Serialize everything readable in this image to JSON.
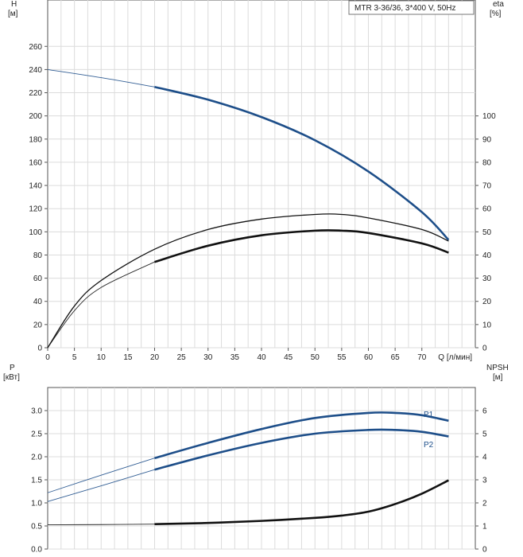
{
  "chart_data": [
    {
      "type": "line",
      "panel": "top",
      "title": "MTR 3-36/36, 3*400 V, 50Hz",
      "xlabel": "Q [л/мин]",
      "ylabel_left": [
        "H",
        "[м]"
      ],
      "ylabel_right": [
        "eta",
        "[%]"
      ],
      "x_ticks": [
        "0",
        "5",
        "10",
        "15",
        "20",
        "25",
        "30",
        "35",
        "40",
        "45",
        "50",
        "55",
        "60",
        "65",
        "70"
      ],
      "x_tick_values": [
        0,
        5,
        10,
        15,
        20,
        25,
        30,
        35,
        40,
        45,
        50,
        55,
        60,
        65,
        70
      ],
      "xlim": [
        0,
        80
      ],
      "ylim_left": [
        0,
        300
      ],
      "y_ticks_left": [
        "0",
        "20",
        "40",
        "60",
        "80",
        "100",
        "120",
        "140",
        "160",
        "180",
        "200",
        "220",
        "240",
        "260"
      ],
      "y_tick_values_left": [
        0,
        20,
        40,
        60,
        80,
        100,
        120,
        140,
        160,
        180,
        200,
        220,
        240,
        260
      ],
      "ylim_right": [
        0,
        150
      ],
      "y_ticks_right": [
        "0",
        "10",
        "20",
        "30",
        "40",
        "50",
        "60",
        "70",
        "80",
        "90",
        "100"
      ],
      "y_tick_values_right": [
        0,
        10,
        20,
        30,
        40,
        50,
        60,
        70,
        80,
        90,
        100
      ],
      "grid": true,
      "series": [
        {
          "name": "H",
          "axis": "left",
          "color": "#1d4e89",
          "x": [
            0,
            10,
            20,
            30,
            40,
            50,
            60,
            70,
            75
          ],
          "y": [
            240,
            233,
            225,
            214,
            199,
            179,
            152,
            117,
            93
          ],
          "bold_from": 20
        },
        {
          "name": "eta_1",
          "axis": "right",
          "color": "#111111",
          "x": [
            0,
            5,
            10,
            20,
            30,
            40,
            50,
            55,
            60,
            70,
            75
          ],
          "y": [
            0,
            18,
            29,
            42.5,
            51,
            55.5,
            57.5,
            57.5,
            56,
            51,
            46
          ],
          "bold_from": null
        },
        {
          "name": "eta_2",
          "axis": "right",
          "color": "#111111",
          "x": [
            0,
            5,
            10,
            20,
            30,
            40,
            50,
            55,
            60,
            70,
            75
          ],
          "y": [
            0,
            16,
            26,
            37,
            44,
            48.5,
            50.5,
            50.5,
            49.5,
            45,
            41
          ],
          "bold_from": 20
        }
      ]
    },
    {
      "type": "line",
      "panel": "bottom",
      "xlabel": "",
      "ylabel_left": [
        "P",
        "[кВт]"
      ],
      "ylabel_right": [
        "NPSH",
        "[м]"
      ],
      "xlim": [
        0,
        80
      ],
      "ylim_left": [
        0,
        3.5
      ],
      "y_ticks_left": [
        "0.0",
        "0.5",
        "1.0",
        "1.5",
        "2.0",
        "2.5",
        "3.0"
      ],
      "y_tick_values_left": [
        0,
        0.5,
        1.0,
        1.5,
        2.0,
        2.5,
        3.0
      ],
      "ylim_right": [
        0,
        7
      ],
      "y_ticks_right": [
        "0",
        "1",
        "2",
        "3",
        "4",
        "5",
        "6"
      ],
      "y_tick_values_right": [
        0,
        1,
        2,
        3,
        4,
        5,
        6
      ],
      "grid": true,
      "series": [
        {
          "name": "P1",
          "axis": "left",
          "color": "#1d4e89",
          "x": [
            0,
            10,
            20,
            30,
            40,
            50,
            60,
            65,
            70,
            75
          ],
          "y": [
            1.22,
            1.6,
            1.97,
            2.3,
            2.6,
            2.84,
            2.95,
            2.95,
            2.9,
            2.78
          ],
          "bold_from": 20
        },
        {
          "name": "P2",
          "axis": "left",
          "color": "#1d4e89",
          "x": [
            0,
            10,
            20,
            30,
            40,
            50,
            60,
            65,
            70,
            75
          ],
          "y": [
            1.03,
            1.37,
            1.72,
            2.03,
            2.3,
            2.5,
            2.58,
            2.58,
            2.54,
            2.44
          ],
          "bold_from": 20
        },
        {
          "name": "NPSH",
          "axis": "right",
          "color": "#111111",
          "x": [
            0,
            10,
            20,
            30,
            40,
            50,
            55,
            60,
            65,
            70,
            75
          ],
          "y": [
            1.05,
            1.06,
            1.08,
            1.13,
            1.22,
            1.35,
            1.45,
            1.62,
            1.95,
            2.4,
            2.98
          ],
          "bold_from": 20
        }
      ]
    }
  ]
}
